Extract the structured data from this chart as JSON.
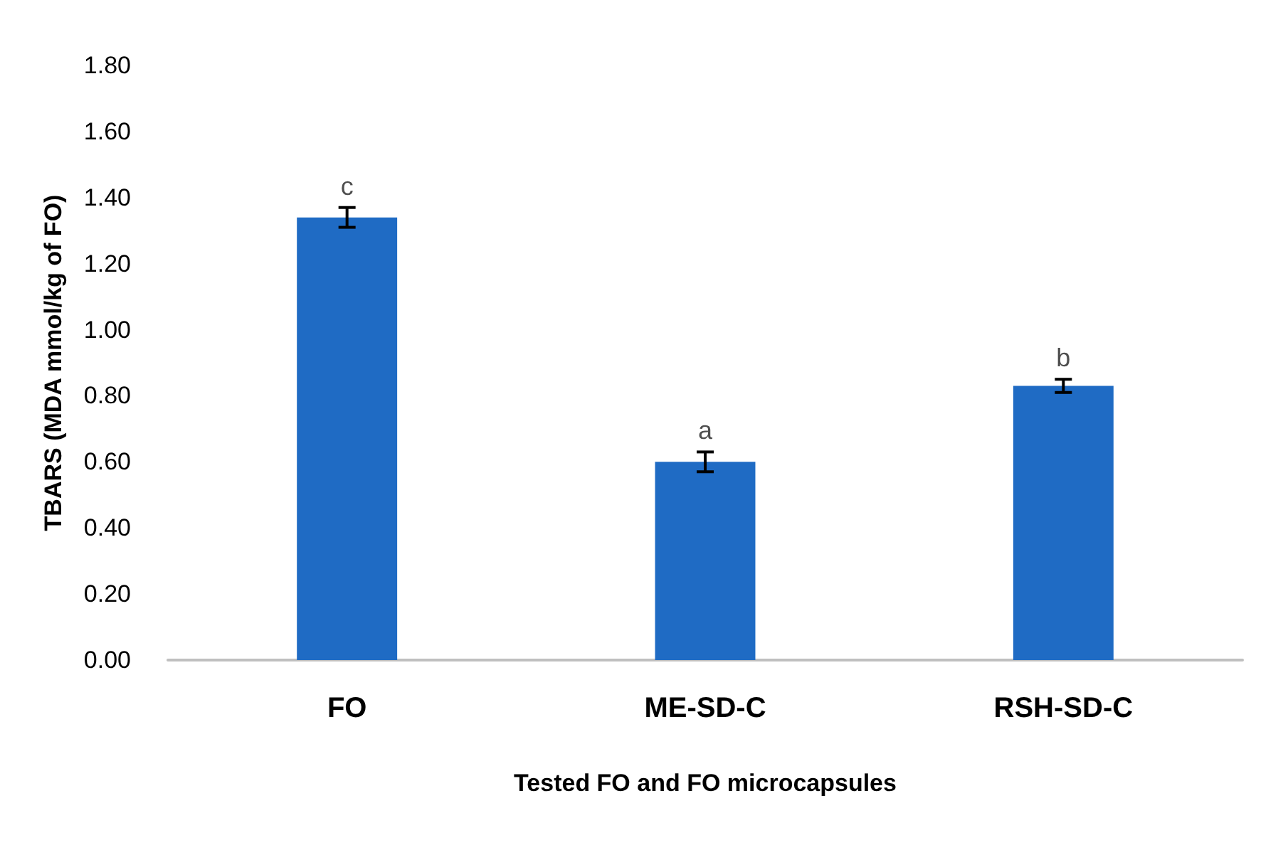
{
  "chart_data": {
    "type": "bar",
    "xlabel": "Tested FO and FO microcapsules",
    "ylabel": "TBARS (MDA mmol/kg of FO)",
    "categories": [
      "FO",
      "ME-SD-C",
      "RSH-SD-C"
    ],
    "values": [
      1.34,
      0.6,
      0.83
    ],
    "errors": [
      0.03,
      0.03,
      0.02
    ],
    "color": "#1f6bc4",
    "ylim": [
      0,
      1.8
    ],
    "yticks": [
      {
        "value": 0,
        "label": "0.00"
      },
      {
        "value": 0.2,
        "label": "0.20"
      },
      {
        "value": 0.4,
        "label": "0.40"
      },
      {
        "value": 0.6,
        "label": "0.60"
      },
      {
        "value": 0.8,
        "label": "0.80"
      },
      {
        "value": 1.0,
        "label": "1.00"
      },
      {
        "value": 1.2,
        "label": "1.20"
      },
      {
        "value": 1.4,
        "label": "1.40"
      },
      {
        "value": 1.6,
        "label": "1.60"
      },
      {
        "value": 1.8,
        "label": "1.80"
      }
    ],
    "grid": false,
    "annotations": [
      {
        "text": "c",
        "x": "FO",
        "y": 1.37
      },
      {
        "text": "a",
        "x": "ME-SD-C",
        "y": 0.63
      },
      {
        "text": "b",
        "x": "RSH-SD-C",
        "y": 0.85
      }
    ]
  }
}
